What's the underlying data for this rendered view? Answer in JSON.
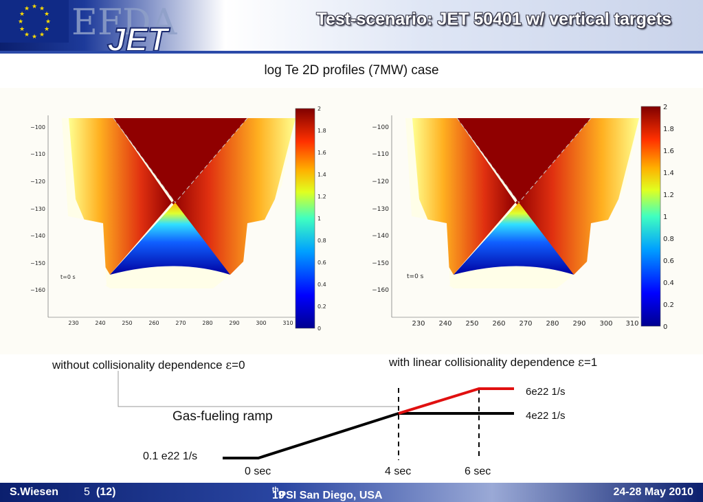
{
  "header": {
    "title": "Test-scenario: JET 50401 w/ vertical targets",
    "logo_top": "EFDA",
    "logo_bottom": "JET"
  },
  "subtitle": "log Te 2D profiles (7MW) case",
  "plots": [
    {
      "time_label": "t=0 s",
      "y_ticks": [
        "−100",
        "−110",
        "−120",
        "−130",
        "−140",
        "−150",
        "−160"
      ],
      "x_ticks": [
        "230",
        "240",
        "250",
        "260",
        "270",
        "280",
        "290",
        "300",
        "310"
      ],
      "colorbar_ticks": [
        "2",
        "1.8",
        "1.6",
        "1.4",
        "1.2",
        "1",
        "0.8",
        "0.6",
        "0.4",
        "0.2",
        "0"
      ],
      "caption_prefix": "without collisionality dependence ",
      "caption_symbol": "ε",
      "caption_suffix": "=0"
    },
    {
      "time_label": "t=0 s",
      "y_ticks": [
        "−100",
        "−110",
        "−120",
        "−130",
        "−140",
        "−150",
        "−160"
      ],
      "x_ticks": [
        "230",
        "240",
        "250",
        "260",
        "270",
        "280",
        "290",
        "300",
        "310"
      ],
      "colorbar_ticks": [
        "2",
        "1.8",
        "1.6",
        "1.4",
        "1.2",
        "1",
        "0.8",
        "0.6",
        "0.4",
        "0.2",
        "0"
      ],
      "caption_prefix": "with linear collisionality dependence ",
      "caption_symbol": "ε",
      "caption_suffix": "=1"
    }
  ],
  "ramp": {
    "title": "Gas-fueling ramp",
    "start_value": "0.1 e22 1/s",
    "level_low": "4e22 1/s",
    "level_high": "6e22 1/s",
    "times": [
      "0 sec",
      "4 sec",
      "6 sec"
    ],
    "colors": {
      "base": "#000000",
      "high": "#e01010"
    }
  },
  "footer": {
    "author": "S.Wiesen",
    "page_num": "5",
    "page_total": "(12)",
    "conf_prefix": "19",
    "conf_sup": "th",
    "conf_rest": " PSI San Diego, USA",
    "dates": "24-28 May 2010"
  },
  "colors": {
    "accent": "#1d3a9a",
    "title_text": "#ffffff"
  }
}
